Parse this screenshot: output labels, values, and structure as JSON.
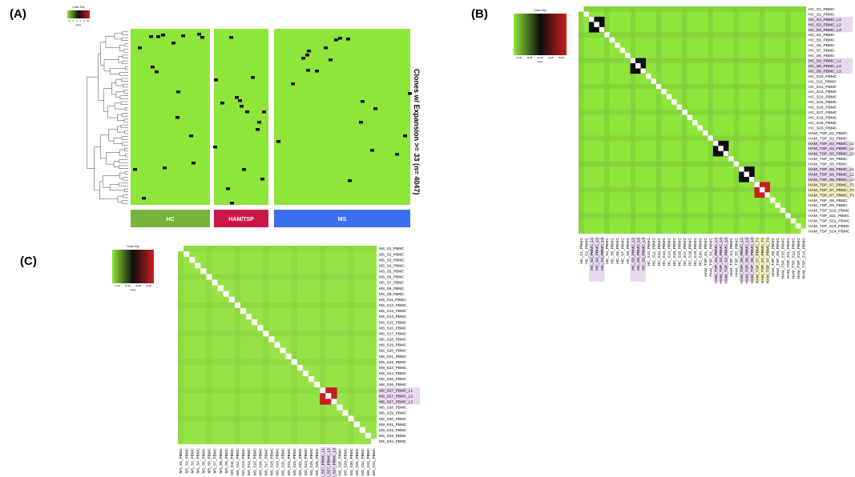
{
  "panels": {
    "a": {
      "label": "(A)"
    },
    "b": {
      "label": "(B)"
    },
    "c": {
      "label": "(C)"
    }
  },
  "colors": {
    "green": "#8fe63a",
    "black": "#0d0d0d",
    "red": "#c81e1e",
    "white": "#ffffff",
    "hc": "#76b43a",
    "ham": "#cc1746",
    "ms": "#3a6ff0",
    "highlight_purple": "#e6d8ef",
    "highlight_yellow": "#f4efc0"
  },
  "chart_data": [
    {
      "id": "A",
      "type": "heatmap",
      "title": "",
      "ylabel": "Clones w/ Expansion >= 33 (n= 4047)",
      "color_key": {
        "title": "Color Key",
        "ticks": [
          "0",
          "2",
          "4",
          "6",
          "8",
          "10"
        ],
        "xlabel": "Value"
      },
      "groups": [
        {
          "name": "HC",
          "color": "#76b43a"
        },
        {
          "name": "HAM/TSP",
          "color": "#cc1746"
        },
        {
          "name": "MS",
          "color": "#3a6ff0"
        }
      ]
    },
    {
      "id": "B",
      "type": "heatmap",
      "color_key": {
        "title": "Color Key",
        "ticks": [
          "1e-08",
          "2e-08",
          "3e-08",
          "4e-08",
          "5e-08"
        ],
        "xlabel": "Value"
      },
      "labels": [
        "HC_S1_PBMC",
        "HC_S2_PBMC",
        "HC_S3_PBMC_L1",
        "HC_S3_PBMC_L2",
        "HC_S3_PBMC_L3",
        "HC_S4_PBMC",
        "HC_S5_PBMC",
        "HC_S6_PBMC",
        "HC_S7_PBMC",
        "HC_S8_PBMC",
        "HC_S9_PBMC_L1",
        "HC_S9_PBMC_L2",
        "HC_S9_PBMC_L3",
        "HC_S10_PBMC",
        "HC_S11_PBMC",
        "HC_S12_PBMC",
        "HC_S13_PBMC",
        "HC_S14_PBMC",
        "HC_S15_PBMC",
        "HC_S16_PBMC",
        "HC_S17_PBMC",
        "HC_S18_PBMC",
        "HC_S19_PBMC",
        "HC_S20_PBMC",
        "HAM_TSP_S1_PBMC",
        "HAM_TSP_S2_PBMC",
        "HAM_TSP_S3_PBMC_L1",
        "HAM_TSP_S3_PBMC_L2",
        "HAM_TSP_S3_PBMC_L3",
        "HAM_TSP_S4_PBMC",
        "HAM_TSP_S5_PBMC",
        "HAM_TSP_S6_PBMC_L1",
        "HAM_TSP_S6_PBMC_L2",
        "HAM_TSP_S6_PBMC_L3",
        "HAM_TSP_S7_PBMC_T1",
        "HAM_TSP_S7_PBMC_T2",
        "HAM_TSP_S7_PBMC_T3",
        "HAM_TSP_S8_PBMC",
        "HAM_TSP_S9_PBMC",
        "HAM_TSP_S10_PBMC",
        "HAM_TSP_S11_PBMC",
        "HAM_TSP_S12_PBMC",
        "HAM_TSP_S13_PBMC",
        "HAM_TSP_S14_PBMC"
      ],
      "highlight_purple": [
        2,
        3,
        4,
        10,
        11,
        12,
        26,
        27,
        28,
        31,
        32,
        33
      ],
      "highlight_yellow": [
        34,
        35,
        36
      ],
      "blocks": [
        {
          "rows": [
            2,
            3,
            4
          ],
          "color": "black"
        },
        {
          "rows": [
            10,
            11,
            12
          ],
          "color": "black"
        },
        {
          "rows": [
            26,
            27,
            28
          ],
          "color": "black"
        },
        {
          "rows": [
            31,
            32,
            33
          ],
          "color": "black"
        },
        {
          "rows": [
            34,
            35,
            36
          ],
          "color": "red"
        }
      ]
    },
    {
      "id": "C",
      "type": "heatmap",
      "color_key": {
        "title": "Color Key",
        "ticks": [
          "1e-08",
          "2e-08",
          "3e-08",
          "4e-08"
        ],
        "xlabel": "Value"
      },
      "labels": [
        "MS_S1_PBMC",
        "MS_S2_PBMC",
        "MS_S3_PBMC",
        "MS_S4_PBMC",
        "MS_S5_PBMC",
        "MS_S6_PBMC",
        "MS_S7_PBMC",
        "MS_S8_PBMC",
        "MS_S9_PBMC",
        "MS_S11_PBMC",
        "MS_S12_PBMC",
        "MS_S13_PBMC",
        "MS_S14_PBMC",
        "MS_S15_PBMC",
        "MS_S16_PBMC",
        "MS_S17_PBMC",
        "MS_S18_PBMC",
        "MS_S19_PBMC",
        "MS_S20_PBMC",
        "MS_S21_PBMC",
        "MS_S22_PBMC",
        "MS_S23_PBMC",
        "MS_S24_PBMC",
        "MS_S25_PBMC",
        "MS_S26_PBMC",
        "MS_S27_PBMC_L1",
        "MS_S27_PBMC_L2",
        "MS_S27_PBMC_L3",
        "MS_S28_PBMC",
        "MS_S29_PBMC",
        "MS_S30_PBMC",
        "MS_S31_PBMC",
        "MS_S32_PBMC",
        "MS_S33_PBMC",
        "MS_S34_PBMC"
      ],
      "highlight_purple": [
        25,
        26,
        27
      ],
      "highlight_yellow": [],
      "blocks": [
        {
          "rows": [
            25,
            26,
            27
          ],
          "color": "red"
        }
      ]
    }
  ]
}
